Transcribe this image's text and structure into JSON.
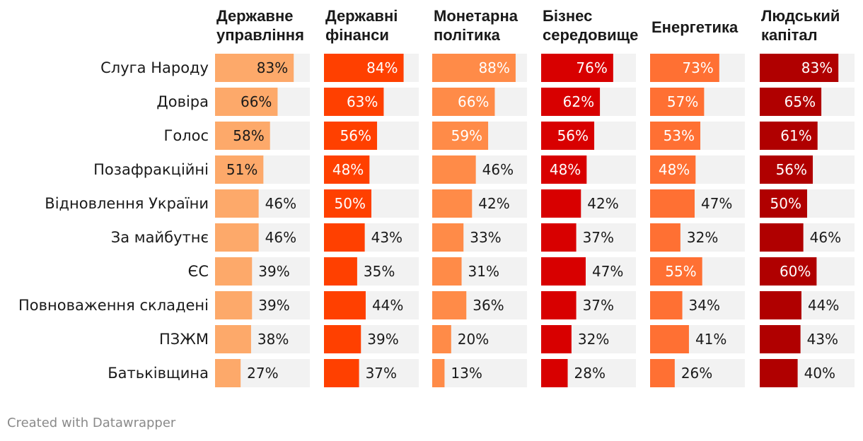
{
  "chart_data": {
    "type": "bar",
    "orientation": "horizontal",
    "layout": "small-multiples",
    "x_range": [
      0,
      100
    ],
    "unit": "%",
    "background_track_color": "#f2f2f2",
    "categories": [
      "Слуга Народу",
      "Довіра",
      "Голос",
      "Позафракційні",
      "Відновлення України",
      "За майбутнє",
      "ЄС",
      "Повноваження складені",
      "ПЗЖМ",
      "Батьківщина"
    ],
    "series": [
      {
        "name": [
          "Державне",
          "управління"
        ],
        "color": "#fda96a",
        "values": [
          83,
          66,
          58,
          51,
          46,
          46,
          39,
          39,
          38,
          27
        ]
      },
      {
        "name": [
          "Державні",
          "фінанси"
        ],
        "color": "#ff4000",
        "values": [
          84,
          63,
          56,
          48,
          50,
          43,
          35,
          44,
          39,
          37
        ]
      },
      {
        "name": [
          "Монетарна",
          "політика"
        ],
        "color": "#ff8b48",
        "values": [
          88,
          66,
          59,
          46,
          42,
          33,
          31,
          36,
          20,
          13
        ]
      },
      {
        "name": [
          "Бізнес",
          "середовище"
        ],
        "color": "#d80000",
        "values": [
          76,
          62,
          56,
          48,
          42,
          37,
          47,
          37,
          32,
          28
        ]
      },
      {
        "name": [
          "Енергетика"
        ],
        "color": "#ff7033",
        "values": [
          73,
          57,
          53,
          48,
          47,
          32,
          55,
          34,
          41,
          26
        ]
      },
      {
        "name": [
          "Людський",
          "капітал"
        ],
        "color": "#b00000",
        "values": [
          83,
          65,
          61,
          56,
          50,
          46,
          60,
          44,
          43,
          40
        ]
      }
    ]
  },
  "footer": {
    "credit": "Created with Datawrapper"
  }
}
